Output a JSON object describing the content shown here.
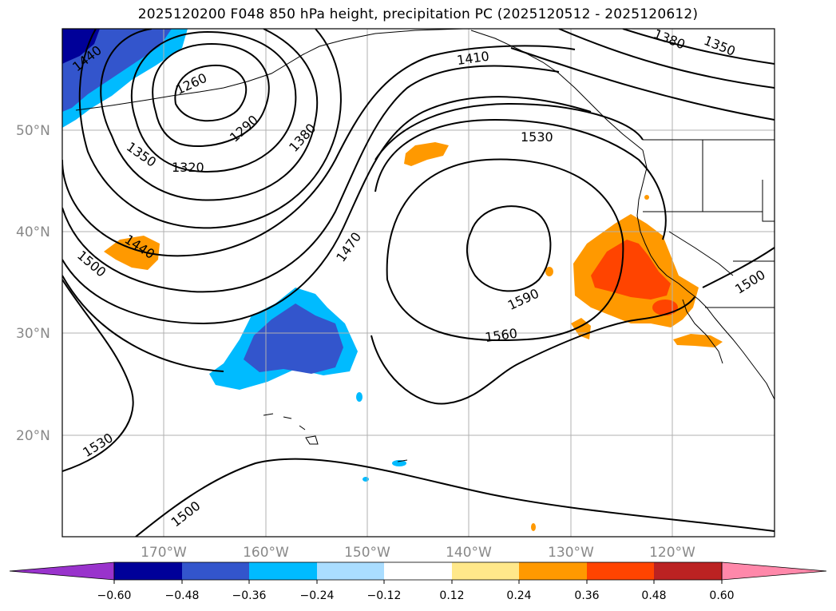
{
  "title": "2025120200 F048 850 hPa height, precipitation PC (2025120512 - 2025120612)",
  "map": {
    "lat_labels": [
      "50°N",
      "40°N",
      "30°N",
      "20°N"
    ],
    "lon_labels": [
      "170°W",
      "160°W",
      "150°W",
      "140°W",
      "130°W",
      "120°W"
    ],
    "contour_labels": [
      "1440",
      "1260",
      "1290",
      "1380",
      "1350",
      "1320",
      "1410",
      "1380",
      "1350",
      "1530",
      "1470",
      "1440",
      "1500",
      "1590",
      "1560",
      "1500",
      "1530",
      "1500"
    ]
  },
  "colorbar": {
    "colors": [
      "#9933cc",
      "#000099",
      "#3355cc",
      "#00bbff",
      "#aaddff",
      "#ffffff",
      "#ffe88a",
      "#ff9900",
      "#ff4400",
      "#bb2222",
      "#ff88aa"
    ],
    "tick_labels": [
      "−0.60",
      "−0.48",
      "−0.36",
      "−0.24",
      "−0.12",
      "0.12",
      "0.24",
      "0.36",
      "0.48",
      "0.60"
    ]
  }
}
